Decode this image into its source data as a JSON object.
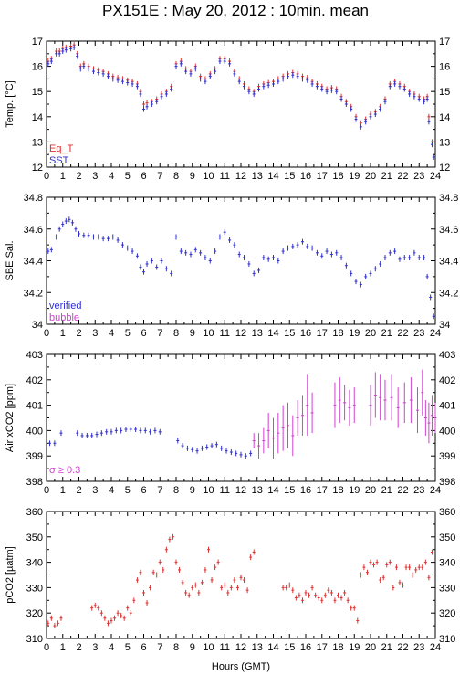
{
  "title": "PX151E : May 20, 2012 : 10min. mean",
  "xlabel": "Hours (GMT)",
  "colors": {
    "blue": "#3030d0",
    "red": "#e03030",
    "magenta": "#d040d0",
    "frame": "#000000"
  },
  "chart_data": [
    {
      "type": "scatter",
      "ylabel": "Temp. [°C]",
      "xlim": [
        0,
        24
      ],
      "ylim": [
        12,
        17
      ],
      "xticks": [
        0,
        1,
        2,
        3,
        4,
        5,
        6,
        7,
        8,
        9,
        10,
        11,
        12,
        13,
        14,
        15,
        16,
        17,
        18,
        19,
        20,
        21,
        22,
        23,
        24
      ],
      "yticks": [
        12,
        13,
        14,
        15,
        16,
        17
      ],
      "legend": [
        {
          "name": "Eq_T",
          "color": "#e03030"
        },
        {
          "name": "SST",
          "color": "#3030d0"
        }
      ],
      "legend_position": "bottom-left",
      "series": [
        {
          "name": "Eq_T",
          "color": "#e03030",
          "x": [
            0.1,
            0.3,
            0.6,
            0.8,
            1.0,
            1.2,
            1.5,
            1.7,
            1.9,
            2.1,
            2.3,
            2.6,
            2.9,
            3.2,
            3.5,
            3.8,
            4.1,
            4.4,
            4.7,
            5.0,
            5.3,
            5.6,
            5.8,
            6.0,
            6.2,
            6.5,
            6.8,
            7.1,
            7.4,
            7.7,
            8.0,
            8.3,
            8.6,
            8.9,
            9.2,
            9.5,
            9.8,
            10.1,
            10.4,
            10.7,
            11.0,
            11.3,
            11.6,
            11.9,
            12.2,
            12.5,
            12.8,
            13.1,
            13.4,
            13.7,
            14.0,
            14.3,
            14.6,
            14.9,
            15.2,
            15.5,
            15.8,
            16.1,
            16.4,
            16.7,
            17.0,
            17.3,
            17.6,
            17.9,
            18.2,
            18.5,
            18.8,
            19.1,
            19.4,
            19.7,
            20.0,
            20.3,
            20.6,
            20.9,
            21.2,
            21.5,
            21.8,
            22.1,
            22.4,
            22.7,
            23.0,
            23.3,
            23.5,
            23.6,
            23.8
          ],
          "y": [
            16.2,
            16.3,
            16.6,
            16.6,
            16.7,
            16.75,
            16.8,
            16.85,
            16.5,
            16.0,
            16.1,
            16.0,
            15.9,
            15.85,
            15.8,
            15.7,
            15.6,
            15.55,
            15.5,
            15.45,
            15.4,
            15.3,
            15.0,
            14.5,
            14.55,
            14.6,
            14.7,
            14.9,
            15.0,
            15.2,
            16.1,
            16.2,
            15.9,
            15.8,
            16.0,
            15.6,
            15.5,
            15.7,
            15.9,
            16.3,
            16.3,
            16.2,
            15.8,
            15.5,
            15.3,
            15.1,
            15.0,
            15.2,
            15.3,
            15.35,
            15.4,
            15.5,
            15.6,
            15.7,
            15.75,
            15.7,
            15.6,
            15.55,
            15.4,
            15.3,
            15.2,
            15.1,
            15.15,
            15.1,
            14.8,
            14.6,
            14.4,
            14.0,
            13.75,
            13.9,
            14.1,
            14.2,
            14.4,
            14.7,
            15.3,
            15.4,
            15.3,
            15.2,
            15.0,
            14.9,
            14.8,
            14.7,
            14.8,
            14.0,
            13.0
          ]
        },
        {
          "name": "SST",
          "color": "#3030d0",
          "x": [
            0.1,
            0.3,
            0.6,
            0.8,
            1.0,
            1.2,
            1.5,
            1.7,
            1.9,
            2.1,
            2.3,
            2.6,
            2.9,
            3.2,
            3.5,
            3.8,
            4.1,
            4.4,
            4.7,
            5.0,
            5.3,
            5.6,
            5.8,
            6.0,
            6.2,
            6.5,
            6.8,
            7.1,
            7.4,
            7.7,
            8.0,
            8.3,
            8.6,
            8.9,
            9.2,
            9.5,
            9.8,
            10.1,
            10.4,
            10.7,
            11.0,
            11.3,
            11.6,
            11.9,
            12.2,
            12.5,
            12.8,
            13.1,
            13.4,
            13.7,
            14.0,
            14.3,
            14.6,
            14.9,
            15.2,
            15.5,
            15.8,
            16.1,
            16.4,
            16.7,
            17.0,
            17.3,
            17.6,
            17.9,
            18.2,
            18.5,
            18.8,
            19.1,
            19.4,
            19.7,
            20.0,
            20.3,
            20.6,
            20.9,
            21.2,
            21.5,
            21.8,
            22.1,
            22.4,
            22.7,
            23.0,
            23.3,
            23.5,
            23.6,
            23.8,
            23.9
          ],
          "y": [
            16.1,
            16.2,
            16.5,
            16.5,
            16.6,
            16.65,
            16.7,
            16.75,
            16.4,
            15.9,
            16.0,
            15.9,
            15.8,
            15.75,
            15.7,
            15.6,
            15.5,
            15.45,
            15.4,
            15.35,
            15.3,
            15.2,
            14.9,
            14.3,
            14.4,
            14.5,
            14.6,
            14.8,
            14.9,
            15.1,
            16.0,
            16.1,
            15.8,
            15.7,
            15.9,
            15.5,
            15.4,
            15.6,
            15.8,
            16.2,
            16.2,
            16.1,
            15.7,
            15.4,
            15.2,
            15.0,
            14.9,
            15.1,
            15.2,
            15.25,
            15.3,
            15.4,
            15.5,
            15.6,
            15.65,
            15.6,
            15.5,
            15.45,
            15.3,
            15.2,
            15.1,
            15.0,
            15.05,
            15.0,
            14.7,
            14.5,
            14.3,
            13.9,
            13.6,
            13.8,
            14.0,
            14.1,
            14.3,
            14.6,
            15.2,
            15.3,
            15.2,
            15.1,
            14.9,
            14.8,
            14.7,
            14.6,
            14.7,
            13.8,
            12.9,
            12.4
          ]
        }
      ]
    },
    {
      "type": "scatter",
      "ylabel": "SBE Sal.",
      "xlim": [
        0,
        24
      ],
      "ylim": [
        34,
        34.8
      ],
      "xticks": [
        0,
        1,
        2,
        3,
        4,
        5,
        6,
        7,
        8,
        9,
        10,
        11,
        12,
        13,
        14,
        15,
        16,
        17,
        18,
        19,
        20,
        21,
        22,
        23,
        24
      ],
      "yticks": [
        34,
        34.2,
        34.4,
        34.6,
        34.8
      ],
      "ytick_labels": [
        "34",
        "34.2",
        "34.4",
        "34.6",
        "34.8"
      ],
      "legend": [
        {
          "name": "verified",
          "color": "#3030d0"
        },
        {
          "name": "bubble",
          "color": "#d040d0"
        }
      ],
      "legend_position": "bottom-left",
      "series": [
        {
          "name": "verified",
          "color": "#3030d0",
          "x": [
            0.1,
            0.3,
            0.6,
            0.8,
            1.0,
            1.2,
            1.4,
            1.6,
            1.8,
            2.0,
            2.3,
            2.6,
            2.9,
            3.2,
            3.5,
            3.8,
            4.1,
            4.4,
            4.7,
            5.0,
            5.3,
            5.6,
            5.8,
            6.0,
            6.2,
            6.5,
            6.8,
            7.1,
            7.4,
            7.7,
            8.0,
            8.3,
            8.6,
            8.9,
            9.2,
            9.5,
            9.8,
            10.1,
            10.4,
            10.7,
            11.0,
            11.3,
            11.6,
            11.9,
            12.2,
            12.5,
            12.8,
            13.1,
            13.4,
            13.7,
            14.0,
            14.3,
            14.6,
            14.9,
            15.2,
            15.5,
            15.8,
            16.1,
            16.4,
            16.7,
            17.0,
            17.3,
            17.6,
            17.9,
            18.2,
            18.5,
            18.8,
            19.1,
            19.4,
            19.7,
            20.0,
            20.3,
            20.6,
            20.9,
            21.2,
            21.5,
            21.8,
            22.1,
            22.4,
            22.7,
            23.0,
            23.3,
            23.5,
            23.7,
            23.9
          ],
          "y": [
            34.46,
            34.47,
            34.55,
            34.6,
            34.63,
            34.65,
            34.66,
            34.64,
            34.6,
            34.57,
            34.56,
            34.56,
            34.55,
            34.55,
            34.54,
            34.54,
            34.55,
            34.53,
            34.5,
            34.48,
            34.46,
            34.43,
            34.36,
            34.33,
            34.38,
            34.4,
            34.36,
            34.4,
            34.35,
            34.32,
            34.55,
            34.46,
            34.45,
            34.44,
            34.47,
            34.45,
            34.42,
            34.4,
            34.46,
            34.55,
            34.58,
            34.53,
            34.5,
            34.44,
            34.42,
            34.38,
            34.32,
            34.34,
            34.42,
            34.41,
            34.42,
            34.4,
            34.46,
            34.48,
            34.49,
            34.5,
            34.52,
            34.49,
            34.48,
            34.45,
            34.43,
            34.46,
            34.44,
            34.45,
            34.42,
            34.37,
            34.32,
            34.27,
            34.25,
            34.3,
            34.32,
            34.35,
            34.38,
            34.42,
            34.45,
            34.46,
            34.41,
            34.42,
            34.42,
            34.45,
            34.42,
            34.42,
            34.3,
            34.17,
            34.05
          ]
        }
      ]
    },
    {
      "type": "scatter",
      "ylabel": "Air xCO2 [ppm]",
      "xlim": [
        0,
        24
      ],
      "ylim": [
        398,
        403
      ],
      "xticks": [
        0,
        1,
        2,
        3,
        4,
        5,
        6,
        7,
        8,
        9,
        10,
        11,
        12,
        13,
        14,
        15,
        16,
        17,
        18,
        19,
        20,
        21,
        22,
        23,
        24
      ],
      "yticks": [
        398,
        399,
        400,
        401,
        402,
        403
      ],
      "annotation": "σ ≥ 0.3",
      "series": [
        {
          "name": "",
          "color": "#3030d0",
          "x": [
            0.2,
            0.5,
            0.9,
            1.9,
            2.2,
            2.5,
            2.8,
            3.1,
            3.4,
            3.7,
            4.0,
            4.3,
            4.6,
            4.9,
            5.2,
            5.5,
            5.8,
            6.1,
            6.4,
            6.7,
            7.0,
            8.1,
            8.4,
            8.7,
            9.0,
            9.3,
            9.6,
            9.9,
            10.2,
            10.5,
            10.8,
            11.1,
            11.4,
            11.7,
            12.0,
            12.3,
            12.6
          ],
          "y": [
            399.5,
            399.5,
            399.9,
            399.9,
            399.8,
            399.8,
            399.8,
            399.85,
            399.9,
            399.95,
            399.95,
            400.0,
            400.0,
            400.05,
            400.05,
            400.05,
            400.0,
            400.0,
            399.95,
            400.0,
            399.95,
            399.6,
            399.4,
            399.3,
            399.25,
            399.2,
            399.3,
            399.35,
            399.4,
            399.45,
            399.3,
            399.2,
            399.15,
            399.1,
            399.05,
            399.0,
            399.1
          ]
        },
        {
          "name": "",
          "color": "#d040d0",
          "x": [
            12.8,
            13.1,
            13.4,
            13.7,
            14.0,
            14.3,
            14.6,
            14.9,
            15.2,
            15.5,
            15.8,
            16.1,
            16.4,
            17.8,
            18.1,
            18.4,
            18.7,
            19.0,
            20.0,
            20.3,
            20.6,
            20.9,
            21.3,
            21.7,
            22.1,
            22.5,
            22.9,
            23.2,
            23.4,
            23.6,
            23.8,
            24.0
          ],
          "y": [
            399.6,
            399.4,
            399.6,
            400.0,
            399.7,
            399.9,
            400.1,
            400.2,
            399.8,
            400.5,
            400.6,
            401.0,
            400.7,
            401.0,
            401.2,
            401.1,
            400.9,
            401.0,
            401.0,
            401.4,
            401.3,
            401.2,
            401.3,
            400.9,
            401.1,
            401.2,
            400.8,
            401.5,
            400.5,
            400.3,
            400.6,
            400.5
          ],
          "err": [
            0.3,
            0.5,
            0.5,
            0.7,
            0.8,
            0.8,
            0.9,
            0.9,
            0.8,
            0.7,
            0.8,
            1.2,
            0.8,
            0.9,
            0.9,
            0.7,
            0.7,
            0.7,
            0.8,
            0.9,
            0.9,
            0.8,
            0.9,
            0.8,
            0.8,
            0.9,
            0.9,
            0.9,
            0.7,
            0.8,
            0.8,
            0.6
          ]
        }
      ]
    },
    {
      "type": "scatter",
      "ylabel": "pCO2 [µatm]",
      "xlim": [
        0,
        24
      ],
      "ylim": [
        310,
        360
      ],
      "xticks": [
        0,
        1,
        2,
        3,
        4,
        5,
        6,
        7,
        8,
        9,
        10,
        11,
        12,
        13,
        14,
        15,
        16,
        17,
        18,
        19,
        20,
        21,
        22,
        23,
        24
      ],
      "yticks": [
        310,
        320,
        330,
        340,
        350,
        360
      ],
      "series": [
        {
          "name": "",
          "color": "#e03030",
          "x": [
            0.1,
            0.3,
            0.5,
            0.7,
            0.9,
            2.8,
            3.0,
            3.2,
            3.4,
            3.6,
            3.8,
            4.0,
            4.2,
            4.4,
            4.6,
            4.8,
            5.0,
            5.2,
            5.4,
            5.6,
            5.8,
            6.0,
            6.2,
            6.4,
            6.6,
            6.8,
            7.0,
            7.2,
            7.4,
            7.6,
            7.8,
            8.0,
            8.2,
            8.4,
            8.6,
            8.8,
            9.0,
            9.2,
            9.4,
            9.6,
            9.8,
            10.0,
            10.2,
            10.4,
            10.6,
            10.8,
            11.0,
            11.2,
            11.4,
            11.6,
            11.8,
            12.0,
            12.2,
            12.4,
            12.6,
            12.8,
            14.6,
            14.8,
            15.0,
            15.2,
            15.4,
            15.6,
            15.8,
            16.0,
            16.2,
            16.4,
            16.6,
            16.8,
            17.0,
            17.2,
            17.4,
            17.6,
            17.8,
            18.0,
            18.2,
            18.4,
            18.6,
            18.8,
            19.0,
            19.2,
            19.4,
            19.6,
            19.8,
            20.0,
            20.2,
            20.4,
            20.6,
            20.8,
            21.0,
            21.2,
            21.4,
            21.6,
            21.8,
            22.0,
            22.2,
            22.4,
            22.6,
            22.8,
            23.0,
            23.2,
            23.4,
            23.6,
            23.8
          ],
          "y": [
            316,
            318,
            315,
            316,
            318,
            322,
            323,
            322,
            320,
            318,
            316,
            317,
            318,
            320,
            319,
            318,
            322,
            320,
            325,
            333,
            336,
            328,
            324,
            330,
            336,
            335,
            340,
            337,
            345,
            349,
            350,
            340,
            337,
            332,
            328,
            327,
            330,
            331,
            328,
            332,
            337,
            345,
            333,
            338,
            340,
            330,
            331,
            328,
            330,
            333,
            330,
            334,
            333,
            329,
            342,
            344,
            330,
            330,
            331,
            329,
            326,
            327,
            325,
            328,
            327,
            330,
            327,
            326,
            325,
            327,
            329,
            328,
            325,
            327,
            326,
            328,
            325,
            322,
            322,
            317,
            335,
            338,
            336,
            340,
            339,
            340,
            333,
            334,
            339,
            340,
            330,
            338,
            332,
            331,
            338,
            338,
            335,
            337,
            338,
            338,
            340,
            334,
            344
          ]
        }
      ]
    }
  ]
}
